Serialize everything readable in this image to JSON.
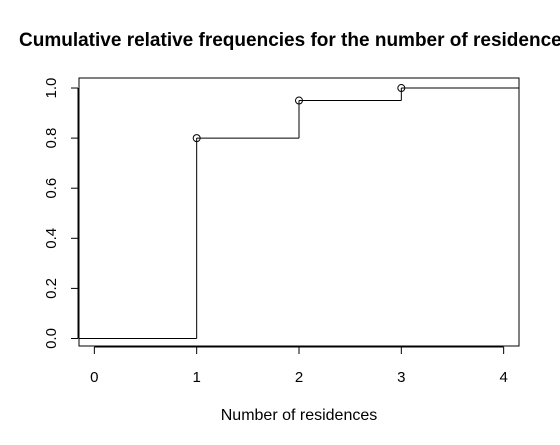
{
  "chart_data": {
    "type": "line",
    "title": "Cumulative relative frequencies for the number of residences",
    "xlabel": "Number of residences",
    "ylabel": "",
    "xlim": [
      -0.15,
      4.15
    ],
    "ylim": [
      -0.03,
      1.04
    ],
    "x_ticks": [
      "0",
      "1",
      "2",
      "3",
      "4"
    ],
    "y_ticks": [
      "0.0",
      "0.2",
      "0.4",
      "0.6",
      "0.8",
      "1.0"
    ],
    "series": [
      {
        "step": "post",
        "points": [
          {
            "x": 1,
            "y": 0.8
          },
          {
            "x": 2,
            "y": 0.95
          },
          {
            "x": 3,
            "y": 1.0
          }
        ],
        "start": {
          "x": -0.15,
          "y": 0.0
        },
        "end": {
          "x": 4.15
        }
      }
    ],
    "grid": false,
    "legend": "none",
    "colors": {
      "line": "#000000",
      "background": "#ffffff"
    }
  }
}
